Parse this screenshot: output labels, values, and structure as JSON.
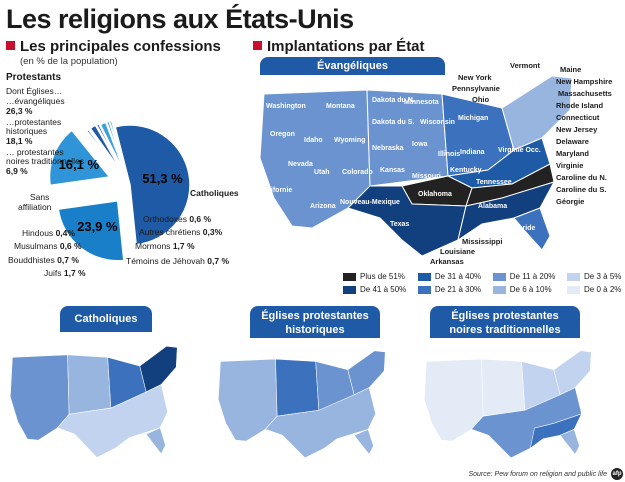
{
  "title": "Les religions aux États-Unis",
  "left_section": {
    "heading": "Les principales confessions",
    "subheading": "(en % de la population)"
  },
  "right_section": {
    "heading": "Implantations par État"
  },
  "pie_labels": {
    "protestants_title": "Protestants",
    "dont_eglises": "Dont Églises…",
    "evangeliques": "…évangéliques",
    "evangeliques_pct": "26,3 %",
    "historiques_1": "…protestantes",
    "historiques_2": "historiques",
    "historiques_pct": "18,1 %",
    "noires_1": "… protestantes",
    "noires_2": "noires traditionnelles",
    "noires_pct": "6,9 %",
    "sans_1": "Sans",
    "sans_2": "affiliation",
    "orthodoxes": "Orthodoxes",
    "orthodoxes_pct": "0,6 %",
    "autres": "Autres chrétiens",
    "autres_pct": "0,3%",
    "mormons": "Mormons",
    "mormons_pct": "1,7 %",
    "temoins": "Témoins de Jéhovah",
    "temoins_pct": "0,7 %",
    "hindous": "Hindous",
    "hindous_pct": "0,4%",
    "musulmans": "Musulmans",
    "musulmans_pct": "0,6 %",
    "bouddhistes": "Bouddhistes",
    "bouddhistes_pct": "0,7 %",
    "juifs": "Juifs",
    "juifs_pct": "1,7 %"
  },
  "maps": {
    "evangeliques_title": "Évangéliques",
    "catholiques_title": "Catholiques",
    "historiques_title_1": "Églises protestantes",
    "historiques_title_2": "historiques",
    "noires_title_1": "Églises protestantes",
    "noires_title_2": "noires traditionnelles"
  },
  "legend": [
    {
      "label": "Plus de 51%",
      "color": "#222222"
    },
    {
      "label": "De 41 à 50%",
      "color": "#123f7d"
    },
    {
      "label": "De 31 à 40%",
      "color": "#1f5aa6"
    },
    {
      "label": "De 21 à 30%",
      "color": "#3c72bd"
    },
    {
      "label": "De 11 à 20%",
      "color": "#6a93cf"
    },
    {
      "label": "De 6 à 10%",
      "color": "#98b5df"
    },
    {
      "label": "De 3 à 5%",
      "color": "#c1d3ee"
    },
    {
      "label": "De 0 à 2%",
      "color": "#e3ebf7"
    }
  ],
  "state_labels_in_map": [
    "Washington",
    "Montana",
    "Dakota du N.",
    "Minnesota",
    "Oregon",
    "Idaho",
    "Wyoming",
    "Dakota du S.",
    "Wisconsin",
    "Michigan",
    "Nebraska",
    "Iowa",
    "Nevada",
    "Utah",
    "Colorado",
    "Kansas",
    "Illinois",
    "Indiana",
    "Californie",
    "Missouri",
    "Kentucky",
    "Arizona",
    "Nouveau-Mexique",
    "Oklahoma",
    "Tennessee",
    "Texas",
    "Alabama",
    "Floride",
    "Virginie Occ."
  ],
  "state_labels_callout": [
    "Vermont",
    "Maine",
    "New York",
    "New Hampshire",
    "Pennsylvanie",
    "Massachusetts",
    "Ohio",
    "Rhode Island",
    "Connecticut",
    "New Jersey",
    "Delaware",
    "Maryland",
    "Virginie",
    "Caroline du N.",
    "Caroline du S.",
    "Géorgie",
    "Mississippi",
    "Louisiane",
    "Arkansas"
  ],
  "source": "Source: Pew forum on religion and public life",
  "logo": "afp",
  "chart_data": {
    "type": "pie",
    "unit": "% de la population",
    "slices": [
      {
        "name": "Protestants",
        "value": 51.3,
        "label": "51,3 %",
        "color": "#1f5aa6"
      },
      {
        "name": "Catholiques",
        "value": 23.9,
        "label": "23,9 %",
        "color": "#1a7fc9"
      },
      {
        "name": "Sans affiliation",
        "value": 16.1,
        "label": "16,1 %",
        "color": "#2f95d8"
      },
      {
        "name": "Orthodoxes",
        "value": 0.6,
        "color": "#1f5aa6"
      },
      {
        "name": "Autres chrétiens",
        "value": 0.3,
        "color": "#1f5aa6"
      },
      {
        "name": "Mormons",
        "value": 1.7,
        "color": "#1f5aa6"
      },
      {
        "name": "Témoins de Jéhovah",
        "value": 0.7,
        "color": "#1f5aa6"
      },
      {
        "name": "Juifs",
        "value": 1.7,
        "color": "#3aa0dc"
      },
      {
        "name": "Bouddhistes",
        "value": 0.7,
        "color": "#3aa0dc"
      },
      {
        "name": "Musulmans",
        "value": 0.6,
        "color": "#3aa0dc"
      },
      {
        "name": "Hindous",
        "value": 0.4,
        "color": "#3aa0dc"
      }
    ],
    "protestant_breakdown": [
      {
        "name": "Églises évangéliques",
        "value": 26.3
      },
      {
        "name": "Églises protestantes historiques",
        "value": 18.1
      },
      {
        "name": "Églises protestantes noires traditionnelles",
        "value": 6.9
      }
    ],
    "maps_legend_classes": [
      "Plus de 51%",
      "De 41 à 50%",
      "De 31 à 40%",
      "De 21 à 30%",
      "De 11 à 20%",
      "De 6 à 10%",
      "De 3 à 5%",
      "De 0 à 2%"
    ]
  }
}
